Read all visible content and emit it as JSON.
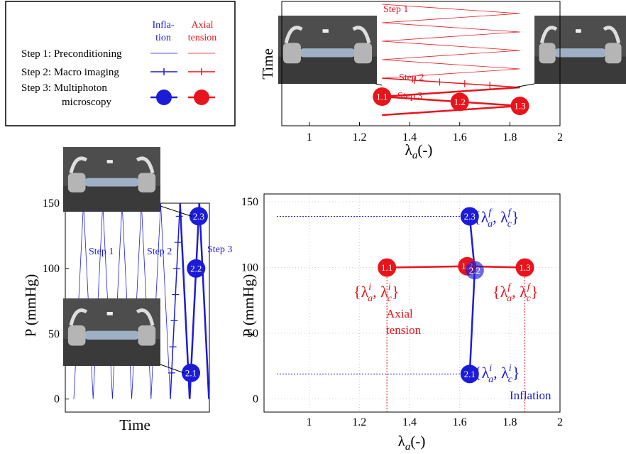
{
  "legend": {
    "headers": [
      {
        "lines": [
          "Infla-",
          "tion"
        ],
        "color": "#1c1cd8"
      },
      {
        "lines": [
          "Axial",
          "tension"
        ],
        "color": "#e8141b"
      }
    ],
    "rows": [
      {
        "lines": [
          "Step 1: Preconditioning"
        ]
      },
      {
        "lines": [
          "Step 2: Macro imaging"
        ]
      },
      {
        "lines": [
          "Step 3: Multiphoton",
          "microscopy"
        ]
      }
    ]
  },
  "chart_data": [
    {
      "type": "lambda-time",
      "xlabel": {
        "base": "λ",
        "sub": "a",
        "tail": "(-)"
      },
      "ylabel": "Time",
      "xlim": [
        0.89,
        2
      ],
      "xticks": [
        1,
        1.2,
        1.4,
        1.6,
        1.8,
        2
      ],
      "series": [
        {
          "name": "Step 1",
          "color": "#e8141b",
          "line_width": 0.8,
          "values": [
            1.29,
            1.84,
            1.29,
            1.84,
            1.29,
            1.84,
            1.29,
            1.84,
            1.29
          ]
        },
        {
          "name": "Step 2",
          "color": "#e8141b",
          "line_width": 1.5,
          "values": [
            1.29,
            1.84
          ],
          "ticks": [
            1.42,
            1.52,
            1.62,
            1.72
          ]
        },
        {
          "name": "Step 3",
          "color": "#e8141b",
          "line_width": 2.5,
          "values": [
            1.84,
            1.29,
            1.84,
            1.29
          ],
          "points": [
            {
              "label": "1.1",
              "value": 1.29
            },
            {
              "label": "1.2",
              "value": 1.6
            },
            {
              "label": "1.3",
              "value": 1.84
            }
          ]
        }
      ]
    },
    {
      "type": "time-pressure",
      "xlabel": "Time",
      "ylabel": "P (mmHg)",
      "ylim": [
        -10,
        150
      ],
      "yticks": [
        0,
        50,
        100,
        150
      ],
      "series": [
        {
          "name": "Step 1",
          "color": "#1c1cd8",
          "line_width": 0.8,
          "values": [
            0,
            150,
            0,
            150,
            0,
            150,
            0,
            150,
            0,
            150,
            0
          ]
        },
        {
          "name": "Step 2",
          "color": "#1c1cd8",
          "line_width": 1.5,
          "values": [
            0,
            150
          ],
          "ticks": [
            20,
            40,
            60,
            80,
            100,
            120,
            140
          ]
        },
        {
          "name": "Step 3",
          "color": "#1c1cd8",
          "line_width": 2.5,
          "values": [
            150,
            0,
            150,
            0
          ],
          "points": [
            {
              "label": "2.1",
              "value": 20
            },
            {
              "label": "2.2",
              "value": 100
            },
            {
              "label": "2.3",
              "value": 140
            }
          ]
        }
      ]
    },
    {
      "type": "scatter",
      "xlabel": {
        "base": "λ",
        "sub": "a",
        "tail": "(-)"
      },
      "ylabel": "P (mmHg)",
      "xlim": [
        0.82,
        2
      ],
      "ylim": [
        -10,
        156
      ],
      "xticks": [
        1,
        1.2,
        1.4,
        1.6,
        1.8,
        2
      ],
      "yticks": [
        0,
        50,
        100,
        150
      ],
      "grid": true,
      "series": [
        {
          "color": "#e8141b",
          "guide": "vertical",
          "x": [
            1.31,
            1.63,
            1.86
          ],
          "values": [
            100,
            101,
            100
          ],
          "labels": [
            "1.1",
            "1.2",
            "1.3"
          ]
        },
        {
          "color": "#1c1cd8",
          "guide": "horizontal",
          "x": [
            1.64,
            1.66,
            1.64
          ],
          "values": [
            19,
            98,
            139
          ],
          "labels": [
            "2.1",
            "2.2",
            "2.3"
          ]
        }
      ],
      "annotations": [
        {
          "color": "#1c1cd8",
          "parts": [
            {
              "t": "{"
            },
            {
              "t": "λ",
              "sub": "a",
              "sup": "f"
            },
            {
              "t": ", "
            },
            {
              "t": "λ",
              "sub": "c",
              "sup": "f"
            },
            {
              "t": "}"
            }
          ]
        },
        {
          "color": "#e8141b",
          "parts": [
            {
              "t": "{"
            },
            {
              "t": "λ",
              "sub": "a",
              "sup": "i"
            },
            {
              "t": ", "
            },
            {
              "t": "λ",
              "sub": "c",
              "sup": "i"
            },
            {
              "t": "}"
            }
          ]
        },
        {
          "color": "#e8141b",
          "parts": [
            {
              "t": "Axial"
            }
          ]
        },
        {
          "color": "#e8141b",
          "parts": [
            {
              "t": "tension"
            }
          ]
        },
        {
          "color": "#e8141b",
          "parts": [
            {
              "t": "{"
            },
            {
              "t": "λ",
              "sub": "a",
              "sup": "f"
            },
            {
              "t": ", "
            },
            {
              "t": "λ",
              "sub": "c",
              "sup": "f"
            },
            {
              "t": "}"
            }
          ]
        },
        {
          "color": "#1c1cd8",
          "parts": [
            {
              "t": "{"
            },
            {
              "t": "λ",
              "sub": "a",
              "sup": "i"
            },
            {
              "t": ", "
            },
            {
              "t": "λ",
              "sub": "c",
              "sup": "i"
            },
            {
              "t": "}"
            }
          ]
        },
        {
          "color": "#1c1cd8",
          "parts": [
            {
              "t": "Inflation"
            }
          ]
        }
      ]
    }
  ]
}
